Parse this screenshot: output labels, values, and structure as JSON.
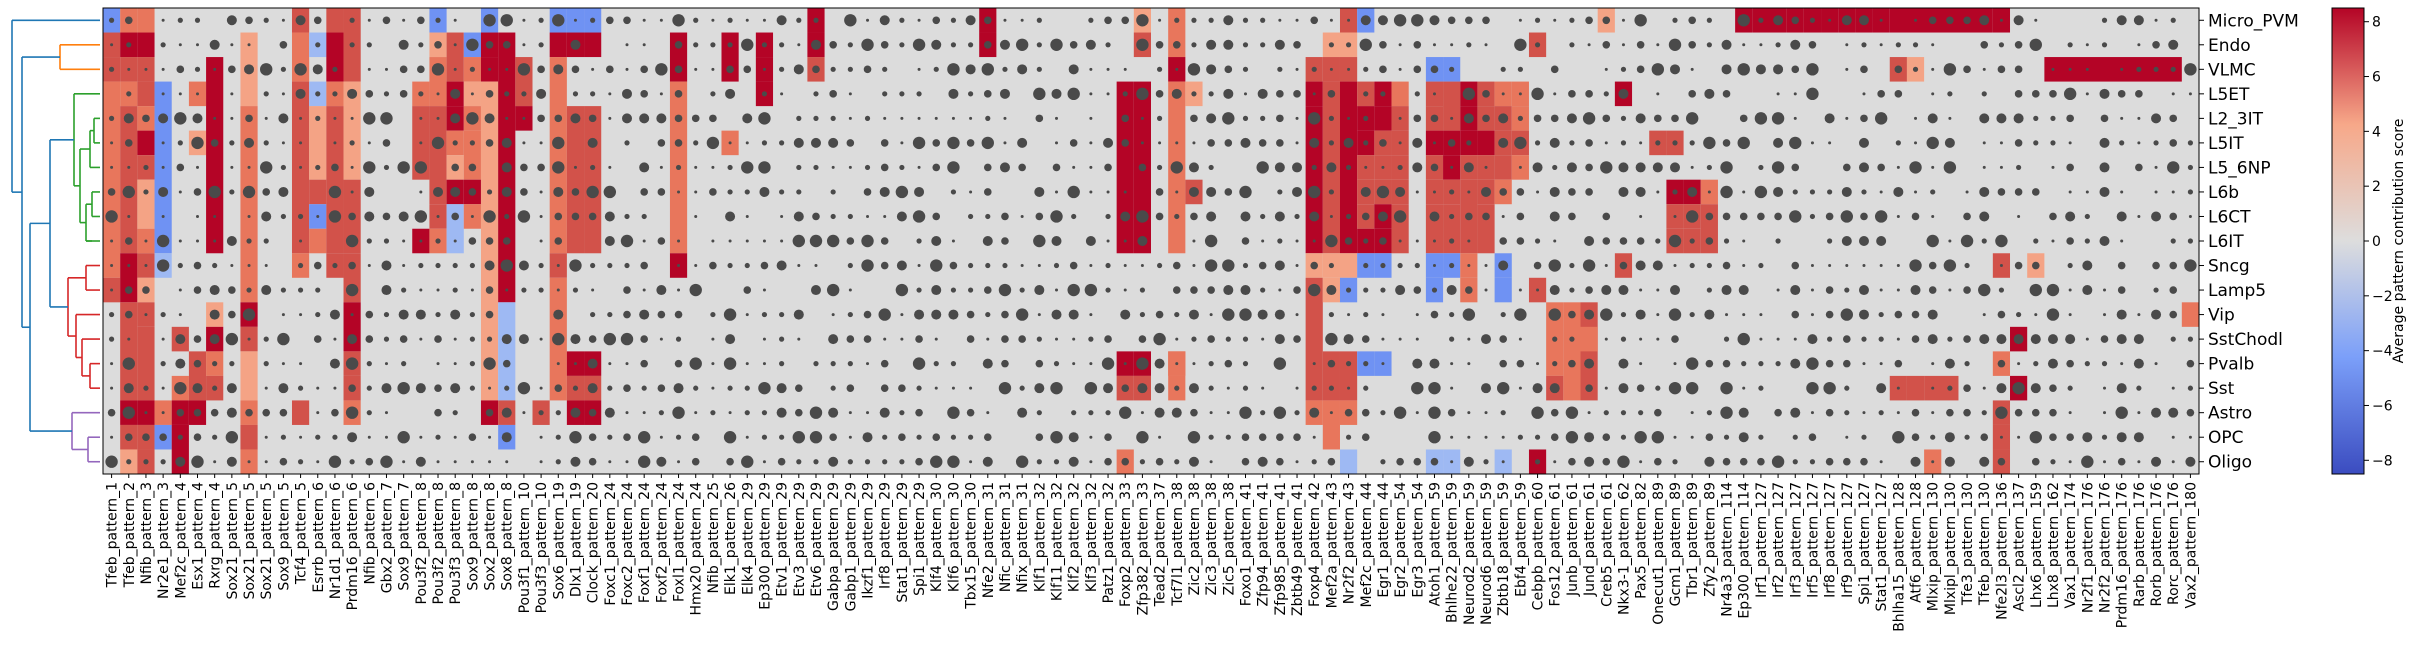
{
  "chart_data": {
    "type": "heatmap",
    "title": "",
    "colorbar_label": "Average pattern contribution score",
    "colorbar_ticks": [
      "8",
      "6",
      "4",
      "2",
      "0",
      "−2",
      "−4",
      "−6",
      "−8"
    ],
    "colorbar_range": [
      -8.5,
      8.5
    ],
    "rows": [
      "Micro_PVM",
      "Endo",
      "VLMC",
      "L5ET",
      "L2_3IT",
      "L5IT",
      "L5_6NP",
      "L6b",
      "L6CT",
      "L6IT",
      "Sncg",
      "Lamp5",
      "Vip",
      "SstChodl",
      "Pvalb",
      "Sst",
      "Astro",
      "OPC",
      "Oligo"
    ],
    "row_clusters": [
      {
        "name": "cluster-1",
        "color": "#ff7f0e",
        "members": [
          "Endo",
          "VLMC"
        ]
      },
      {
        "name": "cluster-2",
        "color": "#2ca02c",
        "members": [
          "L5ET",
          "L2_3IT",
          "L5IT",
          "L5_6NP",
          "L6b",
          "L6CT",
          "L6IT"
        ]
      },
      {
        "name": "cluster-3",
        "color": "#d62728",
        "members": [
          "Sncg",
          "Lamp5",
          "Vip",
          "SstChodl",
          "Pvalb",
          "Sst"
        ]
      },
      {
        "name": "cluster-4",
        "color": "#9467bd",
        "members": [
          "Astro",
          "OPC",
          "Oligo"
        ]
      }
    ],
    "dendrogram_root_color": "#1f77b4",
    "columns": [
      "Tfeb_pattern_1",
      "Tfeb_pattern_2",
      "Nfib_pattern_3",
      "Nr2e1_pattern_3",
      "Mef2c_pattern_4",
      "Esx1_pattern_4",
      "Rxrg_pattern_4",
      "Sox21_pattern_5",
      "Sox21_pattern_5",
      "Sox21_pattern_5",
      "Sox9_pattern_5",
      "Tcf4_pattern_5",
      "Esrrb_pattern_6",
      "Nr1d1_pattern_6",
      "Prdm16_pattern_6",
      "Nfib_pattern_6",
      "Gbx2_pattern_7",
      "Sox9_pattern_7",
      "Pou3f2_pattern_8",
      "Pou3f2_pattern_8",
      "Pou3f3_pattern_8",
      "Sox9_pattern_8",
      "Sox2_pattern_8",
      "Sox8_pattern_8",
      "Pou3f1_pattern_10",
      "Pou3f3_pattern_10",
      "Sox6_pattern_19",
      "Dlx1_pattern_19",
      "Clock_pattern_20",
      "Foxc1_pattern_24",
      "Foxc2_pattern_24",
      "Foxf1_pattern_24",
      "Foxf2_pattern_24",
      "Foxl1_pattern_24",
      "Hmx20_pattern_24",
      "Nfib_pattern_25",
      "Elk1_pattern_26",
      "Elk4_pattern_29",
      "Ep300_pattern_29",
      "Etv1_pattern_29",
      "Etv3_pattern_29",
      "Etv6_pattern_29",
      "Gabpa_pattern_29",
      "Gabp1_pattern_29",
      "Ikzf1_pattern_29",
      "Irf8_pattern_29",
      "Stat1_pattern_29",
      "Spi1_pattern_29",
      "Klf4_pattern_30",
      "Klf6_pattern_30",
      "Tbx15_pattern_30",
      "Nfe2_pattern_31",
      "Nfic_pattern_31",
      "Nfix_pattern_31",
      "Klf1_pattern_32",
      "Klf11_pattern_32",
      "Klf2_pattern_32",
      "Klf3_pattern_32",
      "Patz1_pattern_32",
      "Foxp2_pattern_33",
      "Zfp382_pattern_33",
      "Tead2_pattern_37",
      "Tcf7l1_pattern_38",
      "Zic2_pattern_38",
      "Zic3_pattern_38",
      "Zic5_pattern_38",
      "Foxo1_pattern_41",
      "Zfp94_pattern_41",
      "Zfp985_pattern_41",
      "Zbtb49_pattern_41",
      "Foxp4_pattern_42",
      "Mef2a_pattern_43",
      "Nr2f2_pattern_43",
      "Mef2c_pattern_44",
      "Egr1_pattern_44",
      "Egr2_pattern_54",
      "Egr3_pattern_54",
      "Atoh1_pattern_59",
      "Bhlhe22_pattern_59",
      "Neurod2_pattern_59",
      "Neurod6_pattern_59",
      "Zbtb18_pattern_59",
      "Ebf4_pattern_59",
      "Cebpb_pattern_60",
      "Fos12_pattern_61",
      "Junb_pattern_61",
      "Jund_pattern_61",
      "Creb5_pattern_61",
      "Nkx3-1_pattern_62",
      "Pax5_pattern_82",
      "Onecut1_pattern_89",
      "Gcm1_pattern_89",
      "Tbr1_pattern_89",
      "Zfy2_pattern_89",
      "Nr4a3_pattern_114",
      "Ep300_pattern_114",
      "Irf1_pattern_127",
      "Irf2_pattern_127",
      "Irf3_pattern_127",
      "Irf5_pattern_127",
      "Irf8_pattern_127",
      "Irf9_pattern_127",
      "Spi1_pattern_127",
      "Stat1_pattern_127",
      "Bhlha15_pattern_128",
      "Atf6_pattern_128",
      "Mlxip_pattern_130",
      "Mlxipl_pattern_130",
      "Tfe3_pattern_130",
      "Tfeb_pattern_130",
      "Nfe2l3_pattern_136",
      "Ascl2_pattern_137",
      "Lhx6_pattern_159",
      "Lhx8_pattern_162",
      "Vax1_pattern_174",
      "Nr2f1_pattern_176",
      "Nr2f2_pattern_176",
      "Prdm16_pattern_176",
      "Rarb_pattern_176",
      "Rorb_pattern_176",
      "Rorc_pattern_176",
      "Vax2_pattern_180"
    ],
    "xlabel": "",
    "ylabel": ""
  }
}
